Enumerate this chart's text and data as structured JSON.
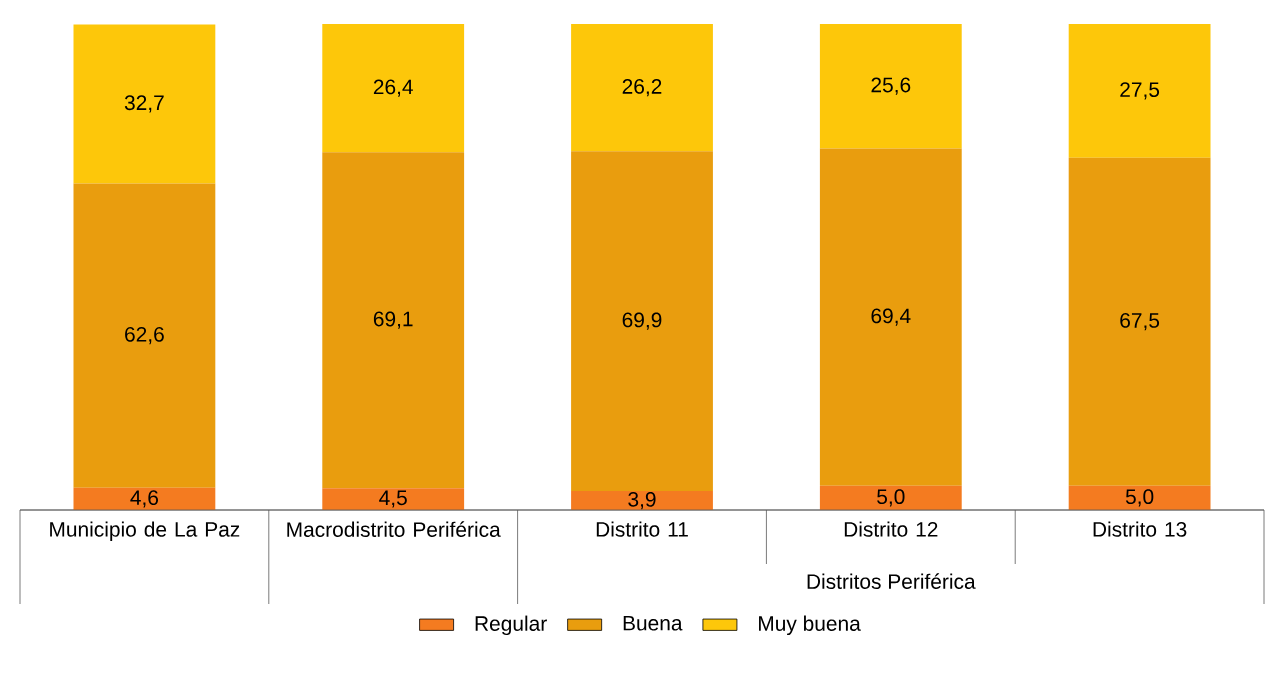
{
  "chart_data": {
    "type": "bar",
    "stacked": true,
    "legend": "bottom",
    "categories": [
      "Municipio de La Paz",
      "Macrodistrito Periférica",
      "Distrito 11",
      "Distrito 12",
      "Distrito 13"
    ],
    "series": [
      {
        "name": "Regular",
        "color": "#f47b20",
        "values": [
          4.6,
          4.5,
          3.9,
          5.0,
          5.0
        ],
        "value_labels": [
          "4,6",
          "4,5",
          "3,9",
          "5,0",
          "5,0"
        ]
      },
      {
        "name": "Buena",
        "color": "#e99d0e",
        "values": [
          62.6,
          69.1,
          69.9,
          69.4,
          67.5
        ],
        "value_labels": [
          "62,6",
          "69,1",
          "69,9",
          "69,4",
          "67,5"
        ]
      },
      {
        "name": "Muy buena",
        "color": "#fdc70a",
        "values": [
          32.7,
          26.4,
          26.2,
          25.6,
          27.5
        ],
        "value_labels": [
          "32,7",
          "26,4",
          "26,2",
          "25,6",
          "27,5"
        ]
      }
    ],
    "annotations": [
      "Distritos Periférica"
    ]
  }
}
